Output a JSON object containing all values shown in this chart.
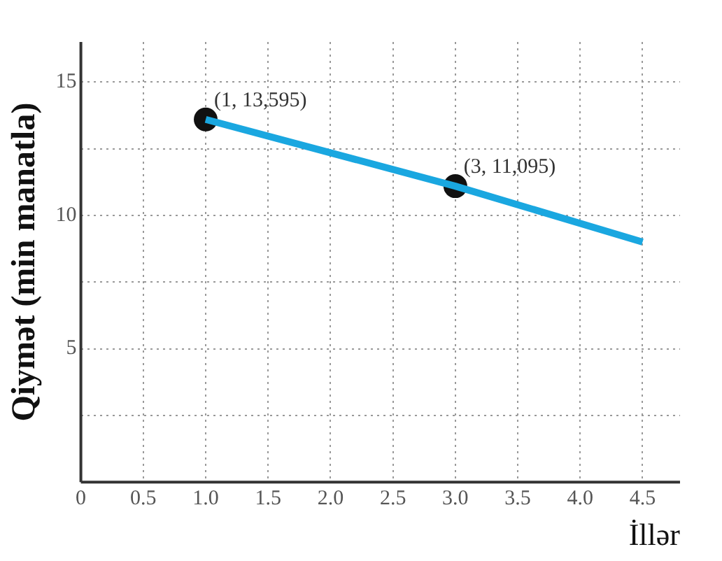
{
  "chart_data": {
    "type": "line",
    "xlabel": "İllər",
    "ylabel": "Qiymət (min manatla)",
    "xlim": [
      0,
      4.8
    ],
    "ylim": [
      0,
      16.5
    ],
    "xticks": [
      0,
      0.5,
      {
        "value": 1,
        "label": "1.0"
      },
      1.5,
      {
        "value": 2,
        "label": "2.0"
      },
      2.5,
      {
        "value": 3,
        "label": "3.0"
      },
      3.5,
      {
        "value": 4,
        "label": "4.0"
      },
      4.5
    ],
    "yticks": [
      {
        "value": 2.5,
        "label": null
      },
      5,
      {
        "value": 7.5,
        "label": null
      },
      10,
      {
        "value": 12.5,
        "label": null
      },
      15
    ],
    "grid": true,
    "legend": false,
    "line_style": "dotted",
    "series": [
      {
        "color": "#1aa7e0",
        "x": [
          1,
          3,
          4.5
        ],
        "values": [
          13.595,
          11.095,
          9.0
        ],
        "marker": "none",
        "line_style": "solid"
      },
      {
        "type": "scatter",
        "color": "#111111",
        "x": [
          1,
          3
        ],
        "values": [
          13.595,
          11.095
        ],
        "marker": "circle"
      }
    ],
    "annotations": [
      {
        "text": "(1, 13,595)",
        "x": 1,
        "y": 13.595
      },
      {
        "text": "(3, 11,095)",
        "x": 3,
        "y": 11.095
      }
    ]
  }
}
